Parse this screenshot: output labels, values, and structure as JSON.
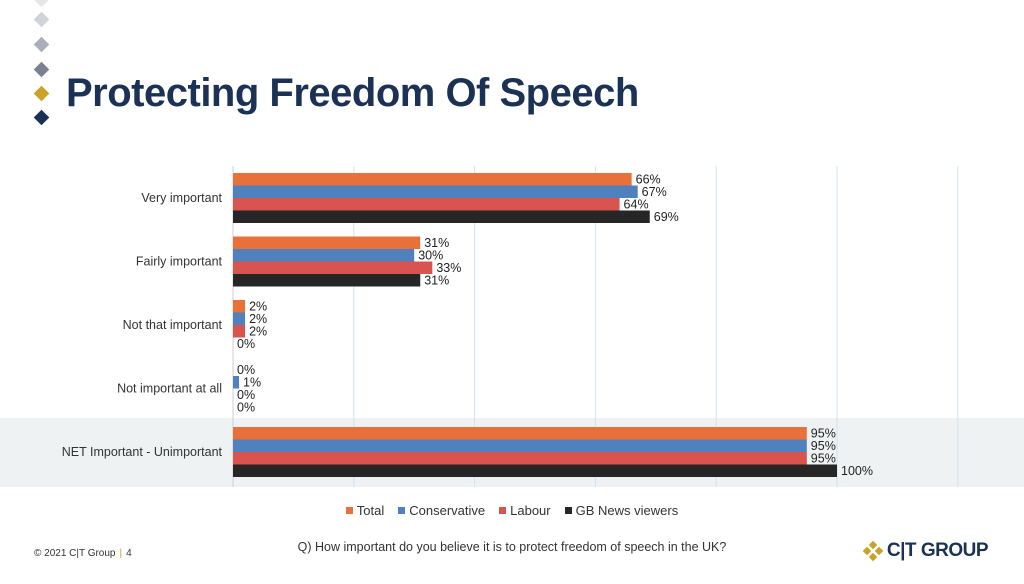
{
  "slide": {
    "title": "Protecting Freedom Of Speech",
    "question": "Q) How important do you believe it is to protect freedom of speech in the UK?",
    "footer_copyright": "© 2021 C|T Group",
    "footer_page": "4",
    "logo_text": "C|T GROUP"
  },
  "colors": {
    "title": "#1b3254",
    "diamonds": [
      "#e6e6e6",
      "#d0d3d9",
      "#a9aeb8",
      "#7a8190",
      "#c9a227",
      "#1b3254"
    ],
    "highlight_band": "#eef2f2",
    "gridline": "#cfe3ef"
  },
  "chart_data": {
    "type": "bar",
    "orientation": "horizontal",
    "categories": [
      "Very important",
      "Fairly important",
      "Not that important",
      "Not important at all",
      "NET Important - Unimportant"
    ],
    "series": [
      {
        "name": "Total",
        "color": "#e8703a",
        "values": [
          66,
          31,
          2,
          0,
          95
        ],
        "labels": [
          "66%",
          "31%",
          "2%",
          "0%",
          "95%"
        ]
      },
      {
        "name": "Conservative",
        "color": "#4e81bd",
        "values": [
          67,
          30,
          2,
          1,
          95
        ],
        "labels": [
          "67%",
          "30%",
          "2%",
          "1%",
          "95%"
        ]
      },
      {
        "name": "Labour",
        "color": "#d9534f",
        "values": [
          64,
          33,
          2,
          0,
          95
        ],
        "labels": [
          "64%",
          "33%",
          "2%",
          "0%",
          "95%"
        ]
      },
      {
        "name": "GB News viewers",
        "color": "#262626",
        "values": [
          69,
          31,
          0,
          0,
          100
        ],
        "labels": [
          "69%",
          "31%",
          "0%",
          "0%",
          "100%"
        ]
      }
    ],
    "xlim": [
      0,
      120
    ],
    "grid": true,
    "highlighted_category": "NET Important - Unimportant",
    "legend_position": "bottom"
  }
}
